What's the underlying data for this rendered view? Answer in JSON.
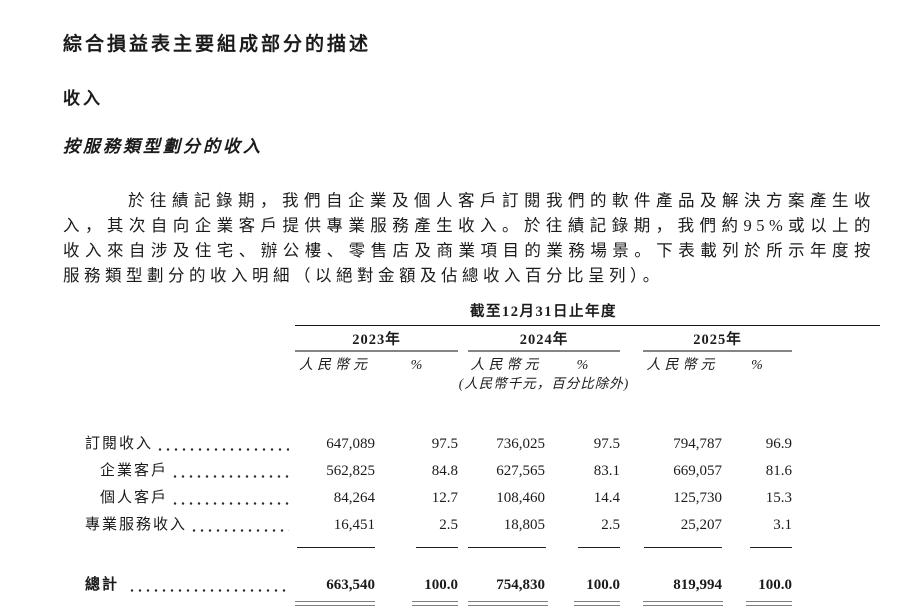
{
  "page": {
    "heading_main": "綜合損益表主要組成部分的描述",
    "heading_revenue": "收入",
    "heading_revenue_by_service_type": "按服務類型劃分的收入",
    "paragraph_lines": [
      "於往績記錄期，我們自企業及個人客戶訂閱我們的軟件產品及解決方案產生收",
      "入，其次自向企業客戶提供專業服務產生收入。於往績記錄期，我們約95%或以上的",
      "收入來自涉及住宅、辦公樓、零售店及商業項目的業務場景。下表載列於所示年度按",
      "服務類型劃分的收入明細（以絕對金額及佔總收入百分比呈列）。"
    ]
  },
  "table": {
    "span_header": "截至12月31日止年度",
    "years": [
      "2023年",
      "2024年",
      "2025年"
    ],
    "col_amount": "人民幣元",
    "col_percent": "%",
    "unit_note": "(人民幣千元，百分比除外)",
    "rows": [
      {
        "label": "訂閱收入",
        "values": [
          "647,089",
          "97.5",
          "736,025",
          "97.5",
          "794,787",
          "96.9"
        ]
      },
      {
        "label": "企業客戶",
        "values": [
          "562,825",
          "84.8",
          "627,565",
          "83.1",
          "669,057",
          "81.6"
        ]
      },
      {
        "label": "個人客戶",
        "values": [
          "84,264",
          "12.7",
          "108,460",
          "14.4",
          "125,730",
          "15.3"
        ]
      },
      {
        "label": "專業服務收入",
        "values": [
          "16,451",
          "2.5",
          "18,805",
          "2.5",
          "25,207",
          "3.1"
        ]
      }
    ],
    "total": {
      "label": "總計",
      "values": [
        "663,540",
        "100.0",
        "754,830",
        "100.0",
        "819,994",
        "100.0"
      ]
    }
  },
  "colors": {
    "text": "#1b1b1b",
    "rule_black": "#161616",
    "rule_gray": "#858585"
  }
}
